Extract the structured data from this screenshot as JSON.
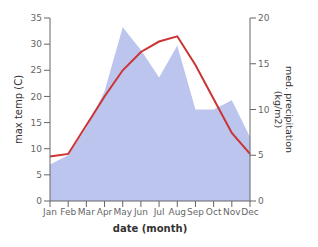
{
  "chart_data": {
    "type": "line",
    "xlabel": "date (month)",
    "ylabel": "max temp (C)",
    "y2label": "med. precipitation\n(kg/m2)",
    "categories": [
      "Jan",
      "Feb",
      "Mar",
      "Apr",
      "May",
      "Jun",
      "Jul",
      "Aug",
      "Sep",
      "Oct",
      "Nov",
      "Dec"
    ],
    "series": [
      {
        "type": "area",
        "axis": "y2",
        "color": "#bcc5ee",
        "values": [
          4.0,
          5.0,
          8.0,
          12.0,
          19.0,
          16.5,
          13.5,
          17.0,
          10.0,
          10.0,
          11.0,
          7.0
        ]
      },
      {
        "type": "line",
        "color": "#cc3333",
        "values": [
          8.5,
          9.0,
          14.5,
          20.0,
          25.0,
          28.5,
          30.5,
          31.5,
          26.0,
          19.5,
          13.0,
          9.0
        ]
      }
    ],
    "ylim": [
      0,
      35
    ],
    "yticks": [
      0,
      5,
      10,
      15,
      20,
      25,
      30,
      35
    ],
    "y2lim": [
      0,
      20
    ],
    "y2ticks": [
      0,
      5,
      10,
      15,
      20
    ]
  }
}
